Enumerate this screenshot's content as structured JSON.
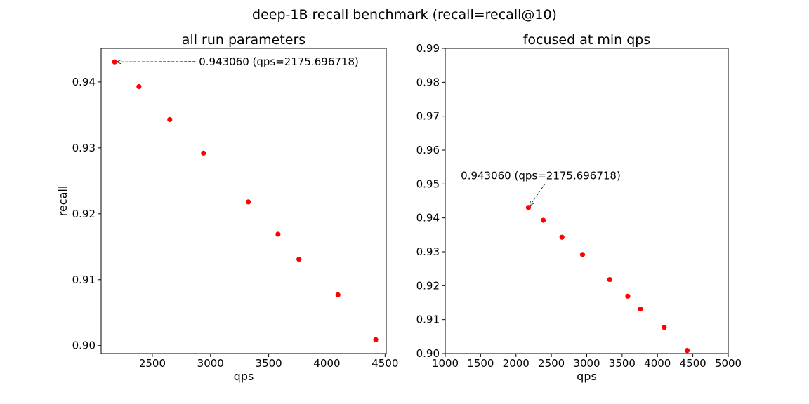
{
  "figure": {
    "title": "deep-1B recall benchmark (recall=recall@10)",
    "marker_color": "#ff0000"
  },
  "chart_data": [
    {
      "type": "scatter",
      "title": "all run parameters",
      "xlabel": "qps",
      "ylabel": "recall",
      "xlim": [
        2060,
        4510
      ],
      "ylim": [
        0.8988,
        0.9451
      ],
      "xticks": [
        2500,
        3000,
        3500,
        4000,
        4500
      ],
      "xtick_labels": [
        "2500",
        "3000",
        "3500",
        "4000",
        "4500"
      ],
      "yticks": [
        0.9,
        0.91,
        0.92,
        0.93,
        0.94
      ],
      "ytick_labels": [
        "0.90",
        "0.91",
        "0.92",
        "0.93",
        "0.94"
      ],
      "grid": false,
      "x": [
        2175.696718,
        2385,
        2650,
        2940,
        3325,
        3580,
        3760,
        4095,
        4420
      ],
      "y": [
        0.94306,
        0.9393,
        0.9343,
        0.9292,
        0.9218,
        0.9169,
        0.9131,
        0.9077,
        0.9009
      ],
      "annotation": {
        "text": "0.943060 (qps=2175.696718)",
        "x": 2175.696718,
        "y": 0.94306,
        "text_x": 2900,
        "text_y": 0.9431,
        "text_anchor": "start"
      }
    },
    {
      "type": "scatter",
      "title": "focused at min qps",
      "xlabel": "qps",
      "ylabel": "",
      "xlim": [
        1000,
        5000
      ],
      "ylim": [
        0.9,
        0.99
      ],
      "xticks": [
        1000,
        1500,
        2000,
        2500,
        3000,
        3500,
        4000,
        4500,
        5000
      ],
      "xtick_labels": [
        "1000",
        "1500",
        "2000",
        "2500",
        "3000",
        "3500",
        "4000",
        "4500",
        "5000"
      ],
      "yticks": [
        0.9,
        0.91,
        0.92,
        0.93,
        0.94,
        0.95,
        0.96,
        0.97,
        0.98,
        0.99
      ],
      "ytick_labels": [
        "0.90",
        "0.91",
        "0.92",
        "0.93",
        "0.94",
        "0.95",
        "0.96",
        "0.97",
        "0.98",
        "0.99"
      ],
      "grid": false,
      "x": [
        2175.696718,
        2385,
        2650,
        2940,
        3325,
        3580,
        3760,
        4095,
        4420
      ],
      "y": [
        0.94306,
        0.9393,
        0.9343,
        0.9292,
        0.9218,
        0.9169,
        0.9131,
        0.9077,
        0.9009
      ],
      "annotation": {
        "text": "0.943060 (qps=2175.696718)",
        "x": 2175.696718,
        "y": 0.94306,
        "text_x": 2350,
        "text_y": 0.9525,
        "text_anchor": "middle"
      }
    }
  ]
}
